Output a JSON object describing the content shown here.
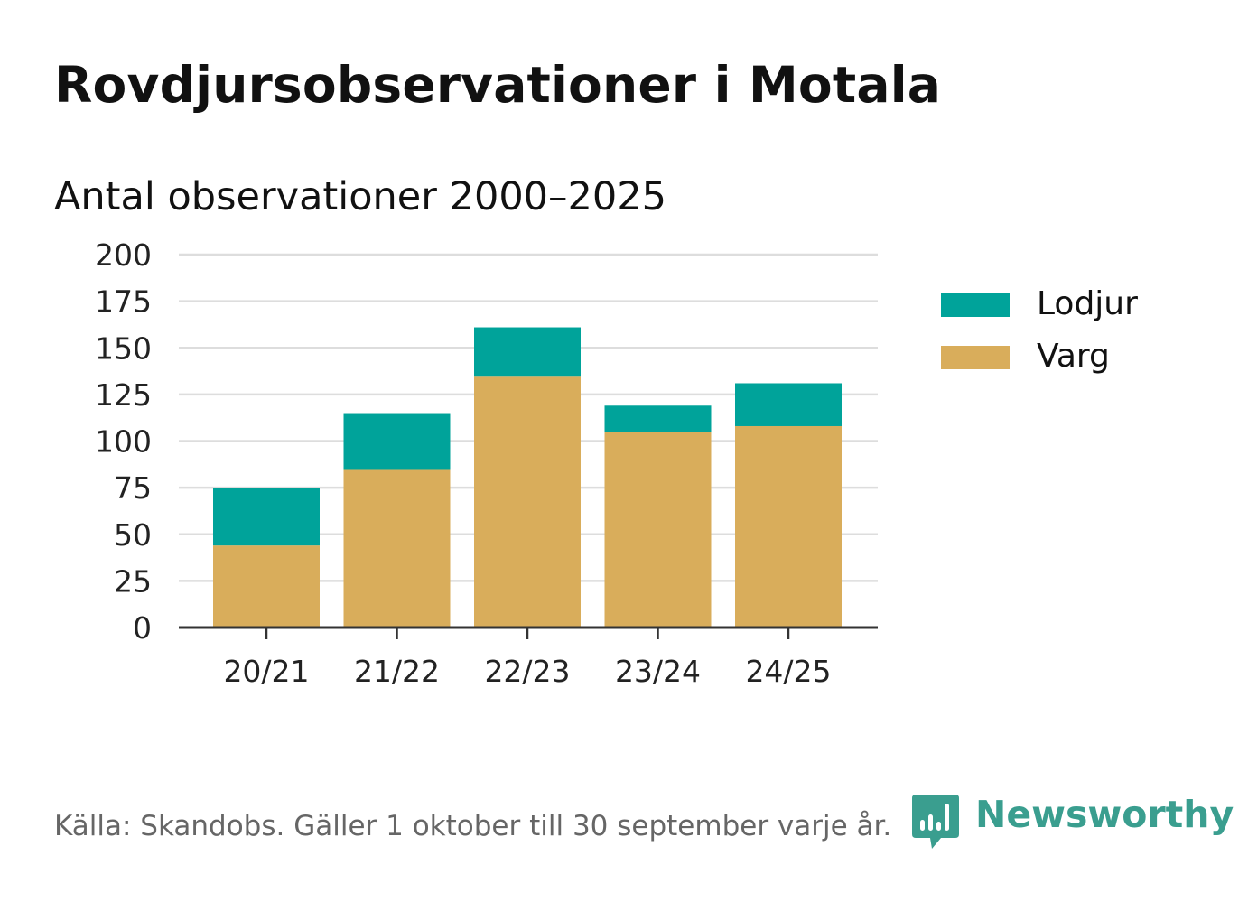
{
  "title": "Rovdjursobservationer i Motala",
  "subtitle": "Antal observationer 2000–2025",
  "footer": "Källa: Skandobs. Gäller 1 oktober till 30 september varje år.",
  "brand": {
    "name": "Newsworthy",
    "icon": "newsworthy-logo-icon",
    "color": "#3a9e8f"
  },
  "chart_data": {
    "type": "bar",
    "stacked": true,
    "categories": [
      "20/21",
      "21/22",
      "22/23",
      "23/24",
      "24/25"
    ],
    "series": [
      {
        "name": "Varg",
        "color": "#d9ad5b",
        "values": [
          44,
          85,
          135,
          105,
          108
        ]
      },
      {
        "name": "Lodjur",
        "color": "#00a39a",
        "values": [
          31,
          30,
          26,
          14,
          23
        ]
      }
    ],
    "legend": [
      {
        "name": "Lodjur",
        "color": "#00a39a"
      },
      {
        "name": "Varg",
        "color": "#d9ad5b"
      }
    ],
    "ylim": [
      0,
      200
    ],
    "yticks": [
      "0",
      "25",
      "50",
      "75",
      "100",
      "125",
      "150",
      "175",
      "200"
    ],
    "grid": true,
    "legend_position": "right"
  }
}
